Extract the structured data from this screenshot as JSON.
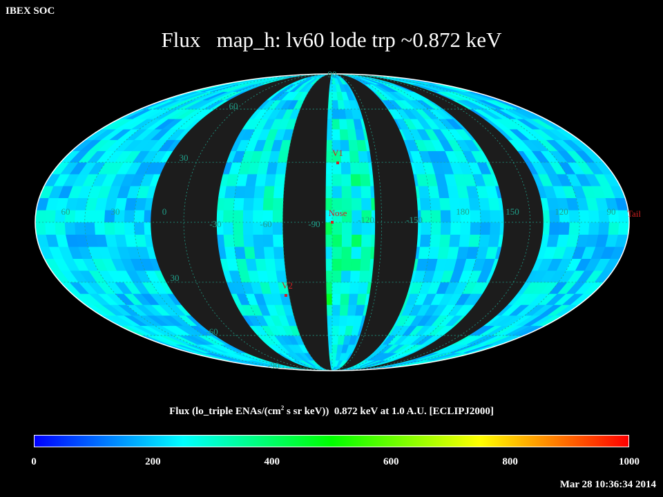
{
  "corner_label": "IBEX SOC",
  "chart_data": {
    "type": "heatmap",
    "projection": "mollweide",
    "title": "Flux   map_h: lv60 lode trp ~0.872 keV",
    "colorbar": {
      "caption_parts": [
        "Flux (lo_triple ENAs/(cm",
        "2",
        " s sr keV))  0.872 keV at 1.0 A.U. [ECLIPJ2000]"
      ],
      "min": 0,
      "max": 1000,
      "ticks": [
        0,
        200,
        400,
        600,
        800,
        1000
      ],
      "colors": [
        "#0000ff",
        "#00ffff",
        "#00ff00",
        "#ffff00",
        "#ff0000"
      ]
    },
    "longitude_labels": [
      "60",
      "30",
      "0",
      "-30",
      "-60",
      "-90",
      "-120",
      "-150",
      "180",
      "150",
      "120",
      "90"
    ],
    "latitude_labels": {
      "top": "90",
      "upper": [
        "60",
        "30"
      ],
      "lower": [
        "30",
        "-60"
      ],
      "bottom": "-90"
    },
    "markers": [
      {
        "label": "V1",
        "lon": 0,
        "lat": 38
      },
      {
        "label": "Nose",
        "lon": 0,
        "lat": 0
      },
      {
        "label": "V2",
        "lon": -14,
        "lat": -55
      },
      {
        "label": "Tail",
        "lon": 180,
        "lat": 0
      }
    ],
    "flux_range_observed": [
      50,
      450
    ],
    "data_gaps": "black bands where no data were collected"
  },
  "timestamp": "Mar 28 10:36:34 2014",
  "colors": {
    "background": "#000000",
    "no_data": "#1c1c1c",
    "grid_labels": "#1fa08a",
    "markers": "#d22222",
    "outline": "#ffffff"
  }
}
